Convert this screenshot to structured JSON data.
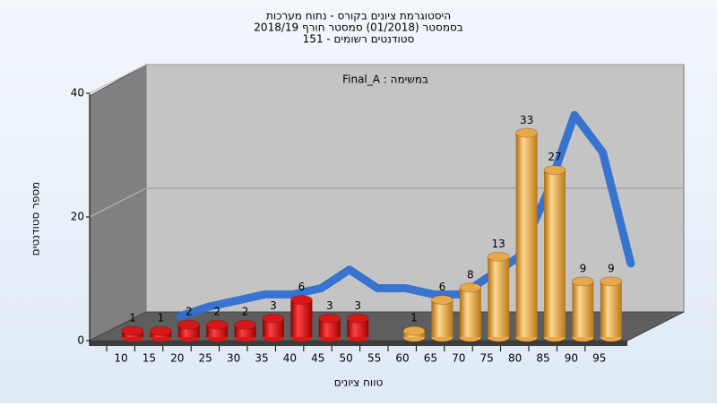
{
  "chart_data": {
    "type": "bar",
    "title": [
      "היסטוגרמת ציונים בקורס - נתוח מערכות",
      "בסמסטר  (01/2018)  סמסטר חורף 2018/19",
      "סטודנטים רשומים - 151"
    ],
    "annotation": "במשימה : Final_A",
    "xlabel": "טווח ציונים",
    "ylabel": "מספר סטודנטים",
    "categories": [
      "10",
      "15",
      "20",
      "25",
      "30",
      "35",
      "40",
      "45",
      "50",
      "55",
      "60",
      "65",
      "70",
      "75",
      "80",
      "85",
      "90",
      "95"
    ],
    "series": [
      {
        "color": "#d81818",
        "values": [
          1,
          1,
          2,
          2,
          2,
          3,
          6,
          3,
          3,
          null,
          null,
          null,
          null,
          null,
          null,
          null,
          null,
          null
        ]
      },
      {
        "color": "#e8a848",
        "values": [
          null,
          null,
          null,
          null,
          null,
          null,
          null,
          null,
          null,
          null,
          1,
          6,
          8,
          13,
          33,
          27,
          9,
          9
        ]
      },
      {
        "type": "line",
        "color": "#2f6fd0",
        "values": [
          null,
          0.5,
          2,
          3,
          4,
          4,
          5,
          8,
          5,
          5,
          4,
          4,
          7,
          10,
          20,
          33,
          27,
          9
        ]
      }
    ],
    "ylim": [
      0,
      40
    ],
    "yticks": [
      0,
      20,
      40
    ],
    "grid": true
  }
}
